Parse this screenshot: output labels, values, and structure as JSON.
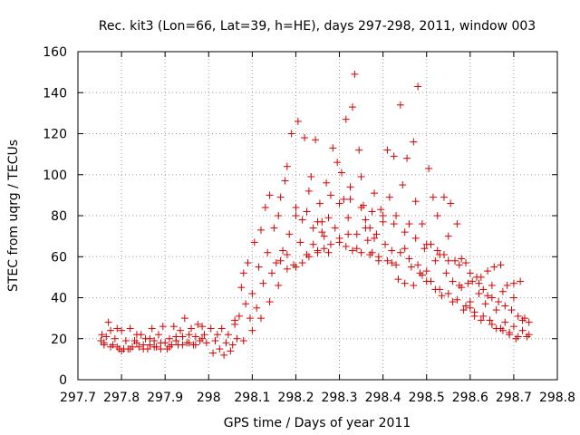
{
  "chart_data": {
    "type": "scatter",
    "title": "Rec. kit3 (Lon=66, Lat=39, h=HE), days 297-298, 2011, window 003",
    "xlabel": "GPS time / Days of year 2011",
    "ylabel": "STEC from uqrg / TECUs",
    "xlim": [
      297.7,
      298.8
    ],
    "ylim": [
      0,
      160
    ],
    "xticks": [
      "297.7",
      "297.8",
      "297.9",
      "298",
      "298.1",
      "298.2",
      "298.3",
      "298.4",
      "298.5",
      "298.6",
      "298.7",
      "298.8"
    ],
    "yticks": [
      "0",
      "20",
      "40",
      "60",
      "80",
      "100",
      "120",
      "140",
      "160"
    ],
    "grid": true,
    "marker": "+",
    "color": "#d40000",
    "series": [
      {
        "name": "",
        "values": [
          [
            297.753,
            19
          ],
          [
            297.755,
            22
          ],
          [
            297.76,
            17
          ],
          [
            297.765,
            21
          ],
          [
            297.77,
            28
          ],
          [
            297.775,
            24
          ],
          [
            297.78,
            17
          ],
          [
            297.785,
            20
          ],
          [
            297.79,
            25
          ],
          [
            297.795,
            15
          ],
          [
            297.8,
            24
          ],
          [
            297.805,
            15
          ],
          [
            297.81,
            19
          ],
          [
            297.815,
            15
          ],
          [
            297.82,
            25
          ],
          [
            297.825,
            16
          ],
          [
            297.83,
            19
          ],
          [
            297.835,
            22
          ],
          [
            297.84,
            16
          ],
          [
            297.845,
            22
          ],
          [
            297.85,
            17
          ],
          [
            297.855,
            20
          ],
          [
            297.86,
            15
          ],
          [
            297.865,
            17
          ],
          [
            297.87,
            25
          ],
          [
            297.875,
            19
          ],
          [
            297.88,
            16
          ],
          [
            297.885,
            22
          ],
          [
            297.89,
            18
          ],
          [
            297.895,
            26
          ],
          [
            297.9,
            18
          ],
          [
            297.905,
            15
          ],
          [
            297.91,
            20
          ],
          [
            297.915,
            17
          ],
          [
            297.92,
            26
          ],
          [
            297.925,
            19
          ],
          [
            297.93,
            17
          ],
          [
            297.935,
            24
          ],
          [
            297.94,
            21
          ],
          [
            297.945,
            30
          ],
          [
            297.95,
            18
          ],
          [
            297.955,
            22
          ],
          [
            297.96,
            25
          ],
          [
            297.965,
            17
          ],
          [
            297.97,
            21
          ],
          [
            297.975,
            27
          ],
          [
            297.98,
            19
          ],
          [
            297.985,
            26
          ],
          [
            297.99,
            22
          ],
          [
            297.995,
            18
          ],
          [
            297.76,
            18
          ],
          [
            297.775,
            16
          ],
          [
            297.79,
            16
          ],
          [
            297.8,
            14
          ],
          [
            297.82,
            15
          ],
          [
            297.835,
            18
          ],
          [
            297.85,
            15
          ],
          [
            297.865,
            20
          ],
          [
            297.875,
            16
          ],
          [
            297.89,
            15
          ],
          [
            297.91,
            16
          ],
          [
            297.925,
            21
          ],
          [
            297.94,
            17
          ],
          [
            297.955,
            18
          ],
          [
            297.97,
            17
          ],
          [
            297.985,
            20
          ],
          [
            298.005,
            25
          ],
          [
            298.01,
            13
          ],
          [
            298.015,
            19
          ],
          [
            298.02,
            22
          ],
          [
            298.025,
            15
          ],
          [
            298.03,
            25
          ],
          [
            298.035,
            12
          ],
          [
            298.04,
            18
          ],
          [
            298.045,
            22
          ],
          [
            298.05,
            14
          ],
          [
            298.055,
            17
          ],
          [
            298.06,
            29
          ],
          [
            298.065,
            20
          ],
          [
            298.07,
            31
          ],
          [
            298.075,
            45
          ],
          [
            298.08,
            52
          ],
          [
            298.085,
            37
          ],
          [
            298.09,
            57
          ],
          [
            298.095,
            30
          ],
          [
            298.1,
            42
          ],
          [
            298.105,
            67
          ],
          [
            298.11,
            35
          ],
          [
            298.115,
            55
          ],
          [
            298.12,
            73
          ],
          [
            298.125,
            47
          ],
          [
            298.13,
            84
          ],
          [
            298.135,
            62
          ],
          [
            298.14,
            90
          ],
          [
            298.145,
            52
          ],
          [
            298.15,
            74
          ],
          [
            298.155,
            57
          ],
          [
            298.16,
            80
          ],
          [
            298.165,
            89
          ],
          [
            298.17,
            63
          ],
          [
            298.175,
            97
          ],
          [
            298.18,
            104
          ],
          [
            298.185,
            71
          ],
          [
            298.19,
            120
          ],
          [
            298.195,
            56
          ],
          [
            298.2,
            84
          ],
          [
            298.205,
            126
          ],
          [
            298.21,
            67
          ],
          [
            298.215,
            78
          ],
          [
            298.22,
            118
          ],
          [
            298.225,
            61
          ],
          [
            298.23,
            92
          ],
          [
            298.235,
            99
          ],
          [
            298.24,
            74
          ],
          [
            298.245,
            117
          ],
          [
            298.25,
            63
          ],
          [
            298.255,
            86
          ],
          [
            298.26,
            77
          ],
          [
            298.265,
            70
          ],
          [
            298.27,
            96
          ],
          [
            298.275,
            62
          ],
          [
            298.28,
            90
          ],
          [
            298.285,
            113
          ],
          [
            298.29,
            74
          ],
          [
            298.295,
            106
          ],
          [
            298.3,
            67
          ],
          [
            298.305,
            101
          ],
          [
            298.31,
            88
          ],
          [
            298.315,
            127
          ],
          [
            298.32,
            71
          ],
          [
            298.325,
            94
          ],
          [
            298.33,
            133
          ],
          [
            298.335,
            149
          ],
          [
            298.34,
            64
          ],
          [
            298.345,
            112
          ],
          [
            298.35,
            99
          ],
          [
            298.355,
            85
          ],
          [
            298.36,
            78
          ],
          [
            298.365,
            68
          ],
          [
            298.37,
            74
          ],
          [
            298.375,
            62
          ],
          [
            298.38,
            91
          ],
          [
            298.385,
            71
          ],
          [
            298.39,
            58
          ],
          [
            298.395,
            83
          ],
          [
            298.4,
            77
          ],
          [
            298.405,
            66
          ],
          [
            298.41,
            112
          ],
          [
            298.415,
            89
          ],
          [
            298.42,
            57
          ],
          [
            298.425,
            109
          ],
          [
            298.43,
            80
          ],
          [
            298.435,
            49
          ],
          [
            298.44,
            134
          ],
          [
            298.445,
            95
          ],
          [
            298.45,
            64
          ],
          [
            298.455,
            108
          ],
          [
            298.46,
            76
          ],
          [
            298.465,
            55
          ],
          [
            298.47,
            116
          ],
          [
            298.475,
            87
          ],
          [
            298.48,
            143
          ],
          [
            298.485,
            52
          ],
          [
            298.49,
            76
          ],
          [
            298.495,
            64
          ],
          [
            298.5,
            48
          ],
          [
            298.505,
            103
          ],
          [
            298.51,
            66
          ],
          [
            298.515,
            89
          ],
          [
            298.52,
            44
          ],
          [
            298.525,
            80
          ],
          [
            298.53,
            61
          ],
          [
            298.535,
            41
          ],
          [
            298.54,
            89
          ],
          [
            298.545,
            52
          ],
          [
            298.55,
            70
          ],
          [
            298.555,
            86
          ],
          [
            298.56,
            38
          ],
          [
            298.565,
            58
          ],
          [
            298.57,
            76
          ],
          [
            298.575,
            46
          ],
          [
            298.58,
            59
          ],
          [
            298.585,
            34
          ],
          [
            298.59,
            57
          ],
          [
            298.595,
            47
          ],
          [
            298.6,
            35
          ],
          [
            298.605,
            48
          ],
          [
            298.61,
            31
          ],
          [
            298.615,
            50
          ],
          [
            298.62,
            42
          ],
          [
            298.625,
            29
          ],
          [
            298.63,
            44
          ],
          [
            298.635,
            37
          ],
          [
            298.64,
            53
          ],
          [
            298.645,
            29
          ],
          [
            298.65,
            40
          ],
          [
            298.655,
            55
          ],
          [
            298.66,
            25
          ],
          [
            298.665,
            38
          ],
          [
            298.67,
            56
          ],
          [
            298.675,
            24
          ],
          [
            298.68,
            36
          ],
          [
            298.685,
            46
          ],
          [
            298.69,
            22
          ],
          [
            298.695,
            34
          ],
          [
            298.7,
            47
          ],
          [
            298.705,
            20
          ],
          [
            298.71,
            31
          ],
          [
            298.715,
            48
          ],
          [
            298.72,
            24
          ],
          [
            298.725,
            30
          ],
          [
            298.73,
            21
          ],
          [
            298.735,
            28
          ],
          [
            298.165,
            58
          ],
          [
            298.18,
            54
          ],
          [
            298.2,
            55
          ],
          [
            298.215,
            57
          ],
          [
            298.23,
            60
          ],
          [
            298.25,
            62
          ],
          [
            298.265,
            64
          ],
          [
            298.28,
            66
          ],
          [
            298.3,
            69
          ],
          [
            298.315,
            65
          ],
          [
            298.33,
            63
          ],
          [
            298.35,
            62
          ],
          [
            298.37,
            61
          ],
          [
            298.39,
            60
          ],
          [
            298.41,
            58
          ],
          [
            298.43,
            56
          ],
          [
            298.45,
            47
          ],
          [
            298.47,
            46
          ],
          [
            298.49,
            51
          ],
          [
            298.51,
            48
          ],
          [
            298.53,
            44
          ],
          [
            298.55,
            42
          ],
          [
            298.57,
            39
          ],
          [
            298.59,
            36
          ],
          [
            298.61,
            33
          ],
          [
            298.63,
            31
          ],
          [
            298.65,
            27
          ],
          [
            298.67,
            25
          ],
          [
            298.69,
            23
          ],
          [
            298.71,
            21
          ],
          [
            298.2,
            80
          ],
          [
            298.225,
            82
          ],
          [
            298.25,
            77
          ],
          [
            298.275,
            79
          ],
          [
            298.3,
            86
          ],
          [
            298.325,
            88
          ],
          [
            298.35,
            84
          ],
          [
            298.375,
            82
          ],
          [
            298.4,
            80
          ],
          [
            298.425,
            76
          ],
          [
            298.45,
            72
          ],
          [
            298.475,
            69
          ],
          [
            298.5,
            66
          ],
          [
            298.525,
            63
          ],
          [
            298.55,
            58
          ],
          [
            298.575,
            56
          ],
          [
            298.6,
            52
          ],
          [
            298.625,
            50
          ],
          [
            298.65,
            46
          ],
          [
            298.675,
            43
          ],
          [
            298.7,
            40
          ],
          [
            298.06,
            27
          ],
          [
            298.08,
            19
          ],
          [
            298.1,
            24
          ],
          [
            298.12,
            30
          ],
          [
            298.14,
            38
          ],
          [
            298.16,
            46
          ],
          [
            298.18,
            61
          ],
          [
            298.24,
            66
          ],
          [
            298.26,
            72
          ],
          [
            298.32,
            79
          ],
          [
            298.34,
            71
          ],
          [
            298.36,
            74
          ],
          [
            298.38,
            69
          ],
          [
            298.42,
            63
          ],
          [
            298.44,
            62
          ],
          [
            298.46,
            59
          ],
          [
            298.48,
            56
          ],
          [
            298.5,
            53
          ],
          [
            298.52,
            58
          ],
          [
            298.54,
            61
          ],
          [
            298.56,
            48
          ],
          [
            298.58,
            45
          ],
          [
            298.6,
            38
          ],
          [
            298.62,
            47
          ],
          [
            298.64,
            41
          ],
          [
            298.66,
            34
          ],
          [
            298.68,
            28
          ],
          [
            298.7,
            26
          ],
          [
            298.72,
            29
          ],
          [
            298.735,
            22
          ]
        ]
      }
    ]
  }
}
